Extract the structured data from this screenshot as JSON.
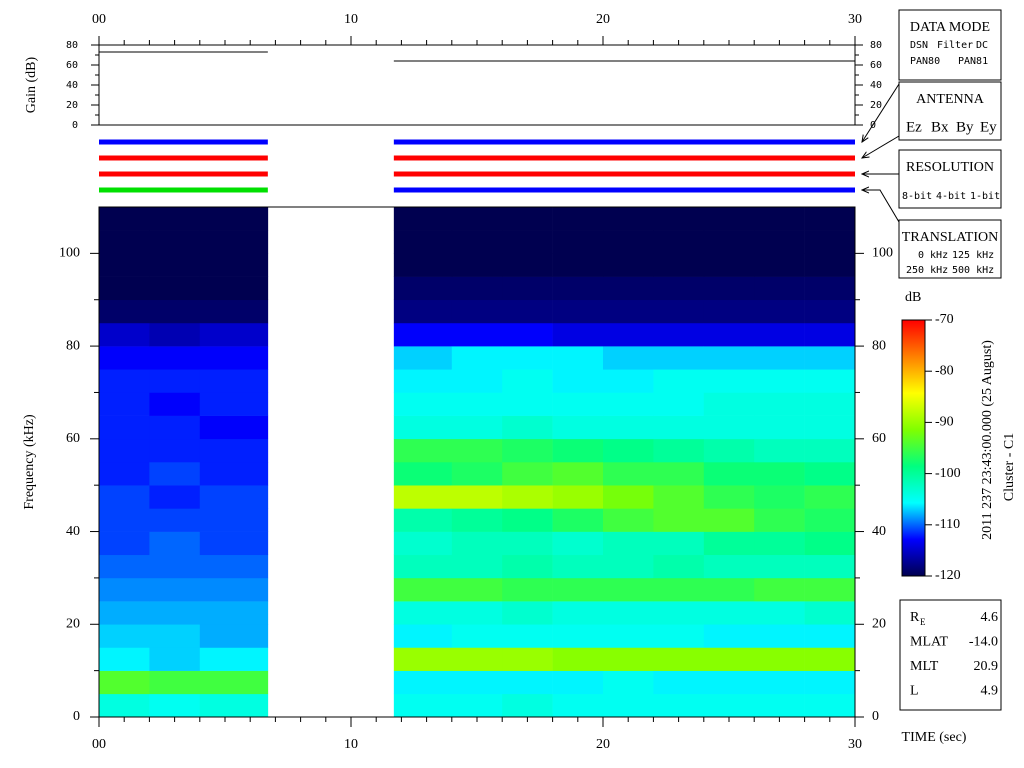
{
  "chart_data": {
    "type": "spectrogram",
    "xlabel": "TIME (sec)",
    "xlim": [
      0,
      30
    ],
    "xticks": [
      {
        "value": 0,
        "label": "00"
      },
      10,
      20,
      30
    ],
    "xminorticks": [
      1,
      2,
      3,
      4,
      5,
      6,
      7,
      8,
      9,
      11,
      12,
      13,
      14,
      15,
      16,
      17,
      18,
      19,
      21,
      22,
      23,
      24,
      25,
      26,
      27,
      28,
      29
    ],
    "gain": {
      "ylabel": "Gain (dB)",
      "ylim": [
        0,
        80
      ],
      "yticks": [
        0,
        20,
        40,
        60,
        80
      ],
      "yminorticks": [
        10,
        30,
        50,
        70
      ],
      "color": "#000000",
      "segments": [
        {
          "x": [
            0,
            6.7
          ],
          "values": [
            73,
            73
          ]
        },
        {
          "x": [
            11.7,
            30
          ],
          "values": [
            64,
            64
          ]
        }
      ]
    },
    "status_bars": [
      {
        "legend_title": "DATA MODE",
        "items": [
          {
            "label": "DSN",
            "color": "#ff0000"
          },
          {
            "label": "Filter",
            "color": "#00c000"
          },
          {
            "label": "DC",
            "color": "#0000ff"
          },
          {
            "label": "PAN80",
            "color": "#000000"
          },
          {
            "label": "PAN81",
            "color": "#00c8c8"
          }
        ],
        "segments": [
          {
            "start": 0,
            "end": 6.7,
            "color": "#0000ff"
          },
          {
            "start": 11.7,
            "end": 30,
            "color": "#0000ff"
          }
        ]
      },
      {
        "legend_title": "ANTENNA",
        "items": [
          {
            "label": "Ez",
            "color": "#ff0000"
          },
          {
            "label": "Bx",
            "color": "#00c000"
          },
          {
            "label": "By",
            "color": "#0000ff"
          },
          {
            "label": "Ey",
            "color": "#000000"
          }
        ],
        "segments": [
          {
            "start": 0,
            "end": 6.7,
            "color": "#ff0000"
          },
          {
            "start": 11.7,
            "end": 30,
            "color": "#ff0000"
          }
        ]
      },
      {
        "legend_title": "RESOLUTION",
        "items": [
          {
            "label": "8-bit",
            "color": "#ff0000"
          },
          {
            "label": "4-bit",
            "color": "#00c000"
          },
          {
            "label": "1-bit",
            "color": "#0000ff"
          }
        ],
        "segments": [
          {
            "start": 0,
            "end": 6.7,
            "color": "#ff0000"
          },
          {
            "start": 11.7,
            "end": 30,
            "color": "#ff0000"
          }
        ]
      },
      {
        "legend_title": "TRANSLATION",
        "items": [
          {
            "label": "0 kHz",
            "color": "#ff0000"
          },
          {
            "label": "125 kHz",
            "color": "#00c000"
          },
          {
            "label": "250 kHz",
            "color": "#0000ff"
          },
          {
            "label": "500 kHz",
            "color": "#000000"
          }
        ],
        "segments": [
          {
            "start": 0,
            "end": 6.7,
            "color": "#00e000"
          },
          {
            "start": 11.7,
            "end": 30,
            "color": "#0000ff"
          }
        ]
      }
    ],
    "ylabel": "Frequency (kHz)",
    "ylim": [
      0,
      110
    ],
    "yticks": [
      0,
      20,
      40,
      60,
      80,
      100
    ],
    "yminorticks": [
      10,
      30,
      50,
      70,
      90
    ],
    "spectrogram": {
      "ybins": [
        0,
        5,
        10,
        15,
        20,
        25,
        30,
        35,
        40,
        45,
        50,
        55,
        60,
        65,
        70,
        75,
        80,
        85,
        90,
        95,
        100,
        105,
        110
      ],
      "segments": [
        {
          "x": [
            0,
            2,
            4,
            6.7
          ],
          "z": [
            [
              -104,
              -94,
              -106,
              -107,
              -108,
              -109,
              -110,
              -111,
              -111,
              -111,
              -112,
              -112,
              -112,
              -112,
              -112,
              -113,
              -115,
              -119,
              -120,
              -120,
              -120,
              -120
            ],
            [
              -105,
              -95,
              -107,
              -107,
              -108,
              -109,
              -110,
              -110,
              -111,
              -112,
              -111,
              -112,
              -112,
              -113,
              -112,
              -113,
              -116,
              -119,
              -120,
              -120,
              -120,
              -120
            ],
            [
              -104,
              -95,
              -106,
              -108,
              -108,
              -109,
              -110,
              -111,
              -111,
              -111,
              -112,
              -112,
              -113,
              -112,
              -112,
              -113,
              -115,
              -119,
              -120,
              -120,
              -120,
              -120
            ]
          ]
        },
        {
          "x": [
            11.7,
            14,
            16,
            18,
            20,
            22,
            24,
            26,
            28,
            30
          ],
          "z": [
            [
              -105,
              -106,
              -90,
              -106,
              -104,
              -95,
              -102,
              -103,
              -101,
              -88,
              -98,
              -96,
              -104,
              -105,
              -106,
              -107,
              -113,
              -118,
              -119,
              -120,
              -120,
              -120
            ],
            [
              -105,
              -106,
              -90,
              -105,
              -104,
              -95,
              -102,
              -102,
              -100,
              -88,
              -97,
              -96,
              -104,
              -105,
              -106,
              -106,
              -113,
              -118,
              -119,
              -120,
              -120,
              -120
            ],
            [
              -104,
              -106,
              -90,
              -105,
              -103,
              -96,
              -101,
              -102,
              -99,
              -89,
              -95,
              -97,
              -103,
              -105,
              -105,
              -106,
              -113,
              -118,
              -119,
              -120,
              -120,
              -120
            ],
            [
              -105,
              -106,
              -91,
              -105,
              -104,
              -96,
              -102,
              -103,
              -97,
              -90,
              -94,
              -98,
              -104,
              -105,
              -106,
              -106,
              -114,
              -118,
              -119,
              -120,
              -120,
              -120
            ],
            [
              -105,
              -105,
              -91,
              -105,
              -104,
              -96,
              -102,
              -102,
              -95,
              -92,
              -96,
              -99,
              -104,
              -105,
              -106,
              -107,
              -114,
              -118,
              -119,
              -120,
              -120,
              -120
            ],
            [
              -105,
              -106,
              -91,
              -105,
              -104,
              -96,
              -101,
              -102,
              -94,
              -94,
              -96,
              -100,
              -104,
              -105,
              -105,
              -107,
              -114,
              -118,
              -119,
              -120,
              -120,
              -120
            ],
            [
              -105,
              -106,
              -91,
              -106,
              -104,
              -96,
              -102,
              -100,
              -94,
              -96,
              -98,
              -101,
              -104,
              -104,
              -105,
              -107,
              -114,
              -118,
              -119,
              -120,
              -120,
              -120
            ],
            [
              -105,
              -106,
              -91,
              -106,
              -104,
              -95,
              -102,
              -100,
              -96,
              -97,
              -98,
              -102,
              -104,
              -104,
              -105,
              -107,
              -114,
              -118,
              -119,
              -120,
              -120,
              -120
            ],
            [
              -105,
              -106,
              -91,
              -106,
              -103,
              -95,
              -102,
              -99,
              -97,
              -96,
              -99,
              -102,
              -104,
              -104,
              -105,
              -107,
              -114,
              -118,
              -119,
              -120,
              -120,
              -120
            ]
          ]
        }
      ]
    },
    "colorbar": {
      "label": "dB",
      "clim": [
        -120,
        -70
      ],
      "ticks": [
        -70,
        -80,
        -90,
        -100,
        -110,
        -120
      ],
      "colormap": [
        "#000050",
        "#0000ff",
        "#00ffff",
        "#00ff80",
        "#80ff00",
        "#ffff00",
        "#ff8000",
        "#ff0000"
      ]
    },
    "annotations": [
      "2011 237 23:43:00.000 (25 August)",
      "Cluster - C1"
    ],
    "info": [
      {
        "label": "R",
        "sub": "E",
        "value": "4.6"
      },
      {
        "label": "MLAT",
        "value": "-14.0"
      },
      {
        "label": "MLT",
        "value": "20.9"
      },
      {
        "label": "L",
        "value": "4.9"
      }
    ]
  }
}
